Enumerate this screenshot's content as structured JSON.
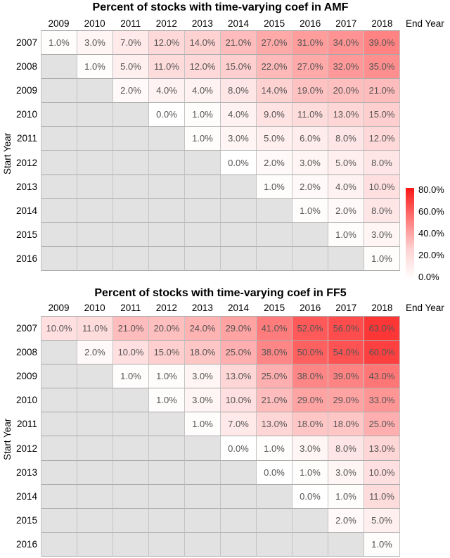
{
  "colors": {
    "low": "#FFFFFF",
    "high": "#FF0000",
    "na_cell": "#E2E2E2",
    "cell_text": "#545454",
    "axis_text": "#000000",
    "scale_max": 80
  },
  "legend": {
    "ticks": [
      "80.0%",
      "60.0%",
      "40.0%",
      "20.0%",
      "0.0%"
    ],
    "tick_values": [
      80,
      60,
      40,
      20,
      0
    ]
  },
  "chart_data": [
    {
      "type": "heatmap",
      "title": "Percent of stocks with time-varying coef in AMF",
      "xlabel": "End Year",
      "ylabel": "Start Year",
      "x_categories": [
        "2009",
        "2010",
        "2011",
        "2012",
        "2013",
        "2014",
        "2015",
        "2016",
        "2017",
        "2018"
      ],
      "y_categories": [
        "2007",
        "2008",
        "2009",
        "2010",
        "2011",
        "2012",
        "2013",
        "2014",
        "2015",
        "2016"
      ],
      "values_percent": [
        [
          1,
          3,
          7,
          12,
          14,
          21,
          27,
          31,
          34,
          39
        ],
        [
          null,
          1,
          5,
          11,
          12,
          15,
          22,
          27,
          32,
          35
        ],
        [
          null,
          null,
          2,
          4,
          4,
          8,
          14,
          19,
          20,
          21
        ],
        [
          null,
          null,
          null,
          0,
          1,
          4,
          9,
          11,
          13,
          15
        ],
        [
          null,
          null,
          null,
          null,
          1,
          3,
          5,
          6,
          8,
          12
        ],
        [
          null,
          null,
          null,
          null,
          null,
          0,
          2,
          3,
          5,
          8
        ],
        [
          null,
          null,
          null,
          null,
          null,
          null,
          1,
          2,
          4,
          10
        ],
        [
          null,
          null,
          null,
          null,
          null,
          null,
          null,
          1,
          2,
          8
        ],
        [
          null,
          null,
          null,
          null,
          null,
          null,
          null,
          null,
          1,
          3
        ],
        [
          null,
          null,
          null,
          null,
          null,
          null,
          null,
          null,
          null,
          1
        ]
      ],
      "color_low": "#FFFFFF",
      "color_high": "#FF0000",
      "na_color": "#E2E2E2",
      "scale": {
        "min": 0,
        "max": 80,
        "legend_position": "right"
      }
    },
    {
      "type": "heatmap",
      "title": "Percent of stocks with time-varying coef in FF5",
      "xlabel": "End Year",
      "ylabel": "Start Year",
      "x_categories": [
        "2009",
        "2010",
        "2011",
        "2012",
        "2013",
        "2014",
        "2015",
        "2016",
        "2017",
        "2018"
      ],
      "y_categories": [
        "2007",
        "2008",
        "2009",
        "2010",
        "2011",
        "2012",
        "2013",
        "2014",
        "2015",
        "2016"
      ],
      "values_percent": [
        [
          10,
          11,
          21,
          20,
          24,
          29,
          41,
          52,
          56,
          63
        ],
        [
          null,
          2,
          10,
          15,
          18,
          25,
          38,
          50,
          54,
          60
        ],
        [
          null,
          null,
          1,
          1,
          3,
          13,
          25,
          38,
          39,
          43
        ],
        [
          null,
          null,
          null,
          1,
          3,
          10,
          21,
          29,
          29,
          33
        ],
        [
          null,
          null,
          null,
          null,
          1,
          7,
          13,
          18,
          18,
          25
        ],
        [
          null,
          null,
          null,
          null,
          null,
          0,
          1,
          3,
          8,
          13
        ],
        [
          null,
          null,
          null,
          null,
          null,
          null,
          0,
          1,
          3,
          10
        ],
        [
          null,
          null,
          null,
          null,
          null,
          null,
          null,
          0,
          1,
          11
        ],
        [
          null,
          null,
          null,
          null,
          null,
          null,
          null,
          null,
          2,
          5
        ],
        [
          null,
          null,
          null,
          null,
          null,
          null,
          null,
          null,
          null,
          1
        ]
      ],
      "color_low": "#FFFFFF",
      "color_high": "#FF0000",
      "na_color": "#E2E2E2",
      "scale": {
        "min": 0,
        "max": 80,
        "legend_position": "right"
      }
    }
  ]
}
